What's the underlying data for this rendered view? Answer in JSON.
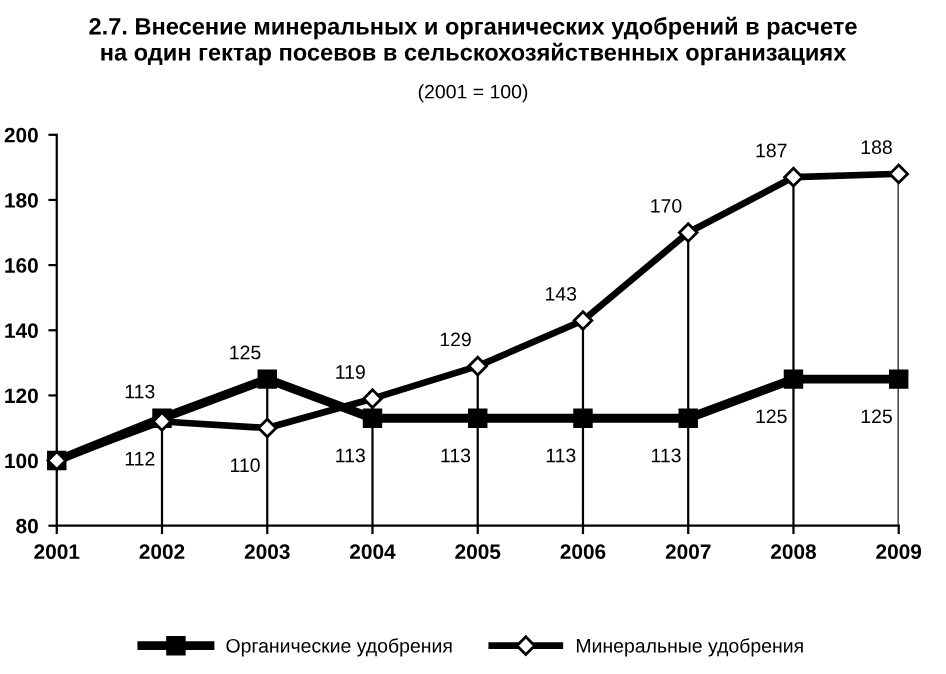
{
  "chart_data": {
    "type": "line",
    "title": "2.7. Внесение минеральных и органических удобрений в расчете\nна один гектар посевов в сельскохозяйственных организациях",
    "subtitle": "(2001 = 100)",
    "categories": [
      "2001",
      "2002",
      "2003",
      "2004",
      "2005",
      "2006",
      "2007",
      "2008",
      "2009"
    ],
    "series": [
      {
        "name": "Органические удобрения",
        "color": "#000000",
        "marker": "square",
        "values": [
          100,
          113,
          125,
          113,
          113,
          113,
          113,
          125,
          125
        ],
        "value_labels": [
          null,
          "113",
          "125",
          "113",
          "113",
          "113",
          "113",
          "125",
          "125"
        ]
      },
      {
        "name": "Минеральные удобрения",
        "color": "#000000",
        "marker": "diamond",
        "values": [
          100,
          112,
          110,
          119,
          129,
          143,
          170,
          187,
          188
        ],
        "value_labels": [
          null,
          "112",
          "110",
          "119",
          "129",
          "143",
          "170",
          "187",
          "188"
        ]
      }
    ],
    "ylim": [
      80,
      200
    ],
    "yticks": [
      80,
      100,
      120,
      140,
      160,
      180,
      200
    ],
    "grid": "x",
    "legend": "bottom"
  }
}
